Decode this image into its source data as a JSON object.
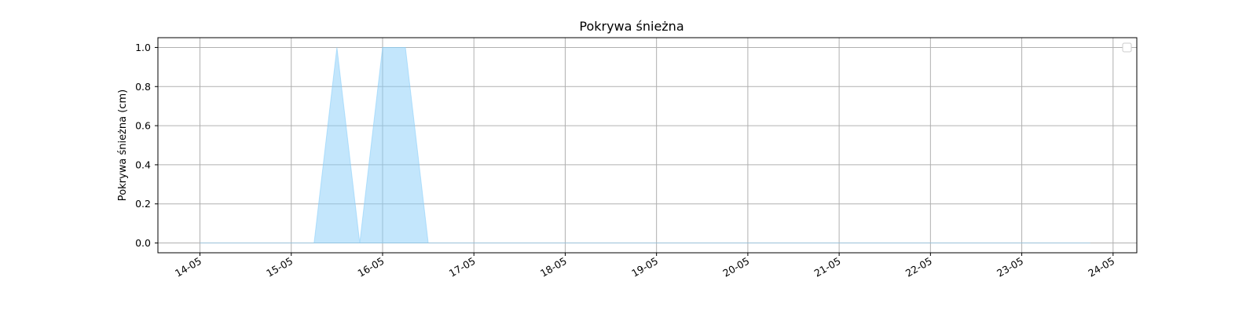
{
  "chart_data": {
    "type": "area",
    "title": "Pokrywa śnieżna",
    "xlabel": "",
    "ylabel": "Pokrywa śnieżna (cm)",
    "ylim": [
      -0.05,
      1.05
    ],
    "yticks": [
      "0.0",
      "0.2",
      "0.4",
      "0.6",
      "0.8",
      "1.0"
    ],
    "xlim": [
      "2024-05-13T12:57",
      "2024-05-24T06:14"
    ],
    "xtick_dates": [
      "2024-05-14",
      "2024-05-15",
      "2024-05-16",
      "2024-05-17",
      "2024-05-18",
      "2024-05-19",
      "2024-05-20",
      "2024-05-21",
      "2024-05-22",
      "2024-05-23",
      "2024-05-24"
    ],
    "xtick_labels": [
      "14-05",
      "15-05",
      "16-05",
      "17-05",
      "18-05",
      "19-05",
      "20-05",
      "21-05",
      "22-05",
      "23-05",
      "24-05"
    ],
    "grid": true,
    "legend": {
      "placement": "upper-right",
      "entries": []
    },
    "series": [
      {
        "color": "#87CEFA",
        "x": [
          "2024-05-14T00:00",
          "2024-05-15T06:00",
          "2024-05-15T12:00",
          "2024-05-15T18:00",
          "2024-05-16T00:00",
          "2024-05-16T06:00",
          "2024-05-16T12:00",
          "2024-05-23T18:00"
        ],
        "values": [
          0,
          0,
          1,
          0,
          1,
          1,
          0,
          0
        ]
      }
    ]
  }
}
